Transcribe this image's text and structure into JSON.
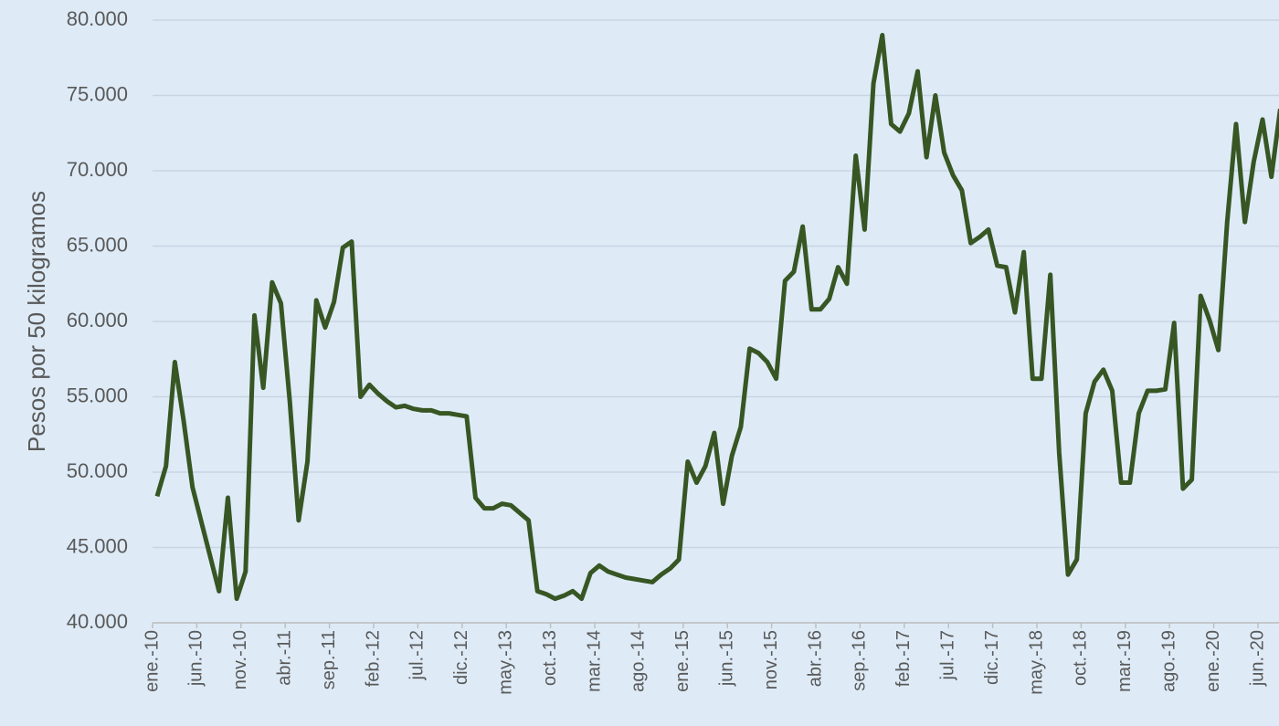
{
  "chart_data": {
    "type": "line",
    "y_label": "Pesos por 50 kilogramos",
    "color": "#375623",
    "grid": true,
    "categories": [
      "ene.-10",
      null,
      null,
      null,
      null,
      "jun.-10",
      null,
      null,
      null,
      null,
      "nov.-10",
      null,
      null,
      null,
      null,
      "abr.-11",
      null,
      null,
      null,
      null,
      "sep.-11",
      null,
      null,
      null,
      null,
      "feb.-12",
      null,
      null,
      null,
      null,
      "jul.-12",
      null,
      null,
      null,
      null,
      "dic.-12",
      null,
      null,
      null,
      null,
      "may.-13",
      null,
      null,
      null,
      null,
      "oct.-13",
      null,
      null,
      null,
      null,
      "mar.-14",
      null,
      null,
      null,
      null,
      "ago.-14",
      null,
      null,
      null,
      null,
      "ene.-15",
      null,
      null,
      null,
      null,
      "jun.-15",
      null,
      null,
      null,
      null,
      "nov.-15",
      null,
      null,
      null,
      null,
      "abr.-16",
      null,
      null,
      null,
      null,
      "sep.-16",
      null,
      null,
      null,
      null,
      "feb.-17",
      null,
      null,
      null,
      null,
      "jul.-17",
      null,
      null,
      null,
      null,
      "dic.-17",
      null,
      null,
      null,
      null,
      "may.-18",
      null,
      null,
      null,
      null,
      "oct.-18",
      null,
      null,
      null,
      null,
      "mar.-19",
      null,
      null,
      null,
      null,
      "ago.-19",
      null,
      null,
      null,
      null,
      "ene.-20",
      null,
      null,
      null,
      null,
      "jun.-20",
      null,
      null
    ],
    "values": [
      48400,
      50400,
      57300,
      53400,
      49000,
      46700,
      44400,
      42100,
      48300,
      41600,
      43400,
      60400,
      55600,
      62600,
      61200,
      54700,
      46800,
      50700,
      61400,
      59600,
      61300,
      64900,
      65300,
      55000,
      55800,
      55200,
      54700,
      54300,
      54400,
      54200,
      54100,
      54100,
      53900,
      53900,
      53800,
      53700,
      48300,
      47600,
      47600,
      47900,
      47800,
      47300,
      46800,
      42100,
      41900,
      41600,
      41800,
      42100,
      41600,
      43300,
      43800,
      43400,
      43200,
      43000,
      42900,
      42800,
      42700,
      43200,
      43600,
      44200,
      50700,
      49300,
      50400,
      52600,
      47900,
      51100,
      53000,
      58200,
      57900,
      57300,
      56200,
      62700,
      63300,
      66300,
      60800,
      60800,
      61500,
      63600,
      62500,
      71000,
      66100,
      75800,
      79000,
      73100,
      72600,
      73800,
      76600,
      70900,
      75000,
      71200,
      69700,
      68700,
      65200,
      65600,
      66100,
      63700,
      63600,
      60600,
      64600,
      56200,
      56200,
      63100,
      51300,
      43200,
      44200,
      53900,
      56000,
      56800,
      55400,
      49300,
      49300,
      53900,
      55400,
      55400,
      55500,
      59900,
      48900,
      49500,
      61700,
      60100,
      58100,
      66600,
      73100,
      66600,
      70600,
      73400,
      69600,
      74100
    ],
    "ylim": [
      40000,
      80000
    ],
    "yticks": [
      {
        "value": 40000,
        "label": "40.000"
      },
      {
        "value": 45000,
        "label": "45.000"
      },
      {
        "value": 50000,
        "label": "50.000"
      },
      {
        "value": 55000,
        "label": "55.000"
      },
      {
        "value": 60000,
        "label": "60.000"
      },
      {
        "value": 65000,
        "label": "65.000"
      },
      {
        "value": 70000,
        "label": "70.000"
      },
      {
        "value": 75000,
        "label": "75.000"
      },
      {
        "value": 80000,
        "label": "80.000"
      }
    ]
  }
}
